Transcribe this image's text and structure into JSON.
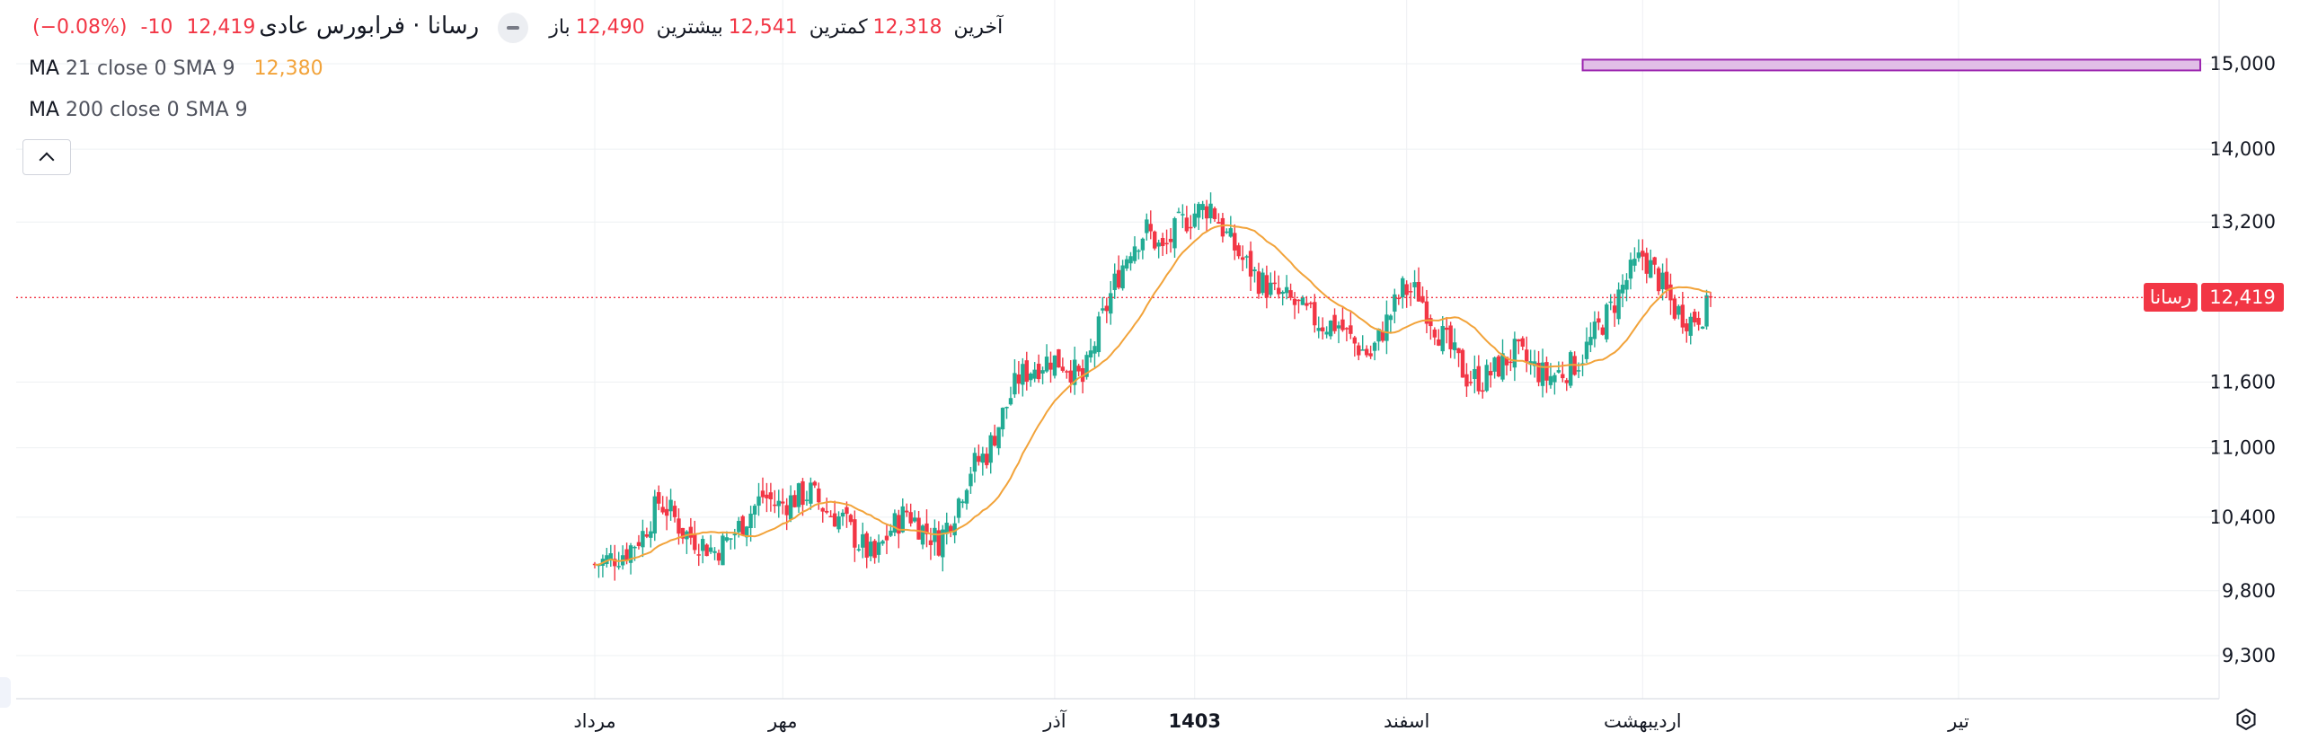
{
  "legend": {
    "symbol": "فرابورس عادی",
    "separator": "·",
    "ticker": "رسانا",
    "open_label": "باز",
    "open": "12,490",
    "high_label": "بیشترین",
    "high": "12,541",
    "low_label": "کمترین",
    "low": "12,318",
    "close_label": "آخرین",
    "close": "12,419",
    "change": "-10",
    "change_pct": "(−0.08%)",
    "ma1_name": "MA",
    "ma1_params": "21 close 0 SMA 9",
    "ma1_value": "12,380",
    "ma2_name": "MA",
    "ma2_params": "200 close 0 SMA 9"
  },
  "price_tag": {
    "name": "رسانا",
    "price": "12,419"
  },
  "colors": {
    "up": "#22ab94",
    "down": "#f23645",
    "ma": "#f2a33a",
    "grid": "#eef0f3",
    "price_line": "#f23645",
    "box_border": "#9c27b0",
    "box_fill": "#e1bee7"
  },
  "chart_data": {
    "type": "candlestick",
    "y_axis": {
      "ticks": [
        9300,
        9800,
        10400,
        11000,
        11600,
        13200,
        14000,
        15000
      ],
      "tick_labels": [
        "9,300",
        "9,800",
        "10,400",
        "11,000",
        "11,600",
        "13,200",
        "14,000",
        "15,000"
      ],
      "scale": "log",
      "range": [
        9050,
        15250
      ]
    },
    "x_axis": {
      "labels": [
        "مرداد",
        "مهر",
        "آذر",
        "1403",
        "اسفند",
        "اردیبهشت",
        "تیر"
      ],
      "label_bars": [
        0,
        47,
        115,
        150,
        203,
        262,
        341
      ],
      "bold_labels": [
        "1403"
      ],
      "total_bars": 380
    },
    "last_price": 12419,
    "ma_21_last": 12380,
    "zone": {
      "from_bar": 247,
      "to_bar": 405,
      "low": 14950,
      "high": 15050
    },
    "close_series": [
      [
        0,
        10010
      ],
      [
        4,
        10060
      ],
      [
        8,
        10120
      ],
      [
        12,
        10260
      ],
      [
        16,
        10530
      ],
      [
        19,
        10440
      ],
      [
        22,
        10280
      ],
      [
        26,
        10200
      ],
      [
        30,
        10120
      ],
      [
        34,
        10230
      ],
      [
        38,
        10400
      ],
      [
        42,
        10580
      ],
      [
        46,
        10500
      ],
      [
        50,
        10560
      ],
      [
        54,
        10610
      ],
      [
        58,
        10450
      ],
      [
        62,
        10380
      ],
      [
        66,
        10190
      ],
      [
        70,
        10050
      ],
      [
        74,
        10300
      ],
      [
        78,
        10450
      ],
      [
        82,
        10300
      ],
      [
        86,
        10200
      ],
      [
        90,
        10460
      ],
      [
        94,
        10820
      ],
      [
        98,
        10950
      ],
      [
        102,
        11300
      ],
      [
        106,
        11640
      ],
      [
        110,
        11750
      ],
      [
        114,
        11820
      ],
      [
        118,
        11770
      ],
      [
        122,
        11600
      ],
      [
        126,
        12100
      ],
      [
        130,
        12560
      ],
      [
        134,
        12950
      ],
      [
        138,
        13120
      ],
      [
        142,
        12880
      ],
      [
        146,
        13160
      ],
      [
        150,
        13300
      ],
      [
        154,
        13380
      ],
      [
        158,
        13050
      ],
      [
        162,
        12800
      ],
      [
        166,
        12600
      ],
      [
        170,
        12450
      ],
      [
        174,
        12380
      ],
      [
        178,
        12250
      ],
      [
        182,
        12160
      ],
      [
        186,
        12150
      ],
      [
        190,
        11960
      ],
      [
        194,
        11850
      ],
      [
        198,
        12180
      ],
      [
        202,
        12500
      ],
      [
        206,
        12460
      ],
      [
        210,
        12150
      ],
      [
        214,
        11900
      ],
      [
        218,
        11650
      ],
      [
        222,
        11620
      ],
      [
        226,
        11750
      ],
      [
        230,
        11880
      ],
      [
        234,
        11760
      ],
      [
        238,
        11640
      ],
      [
        242,
        11700
      ],
      [
        246,
        11800
      ],
      [
        250,
        12050
      ],
      [
        254,
        12300
      ],
      [
        258,
        12600
      ],
      [
        262,
        12850
      ],
      [
        266,
        12600
      ],
      [
        270,
        12300
      ],
      [
        274,
        12200
      ],
      [
        278,
        12300
      ],
      [
        279,
        12419
      ]
    ]
  }
}
